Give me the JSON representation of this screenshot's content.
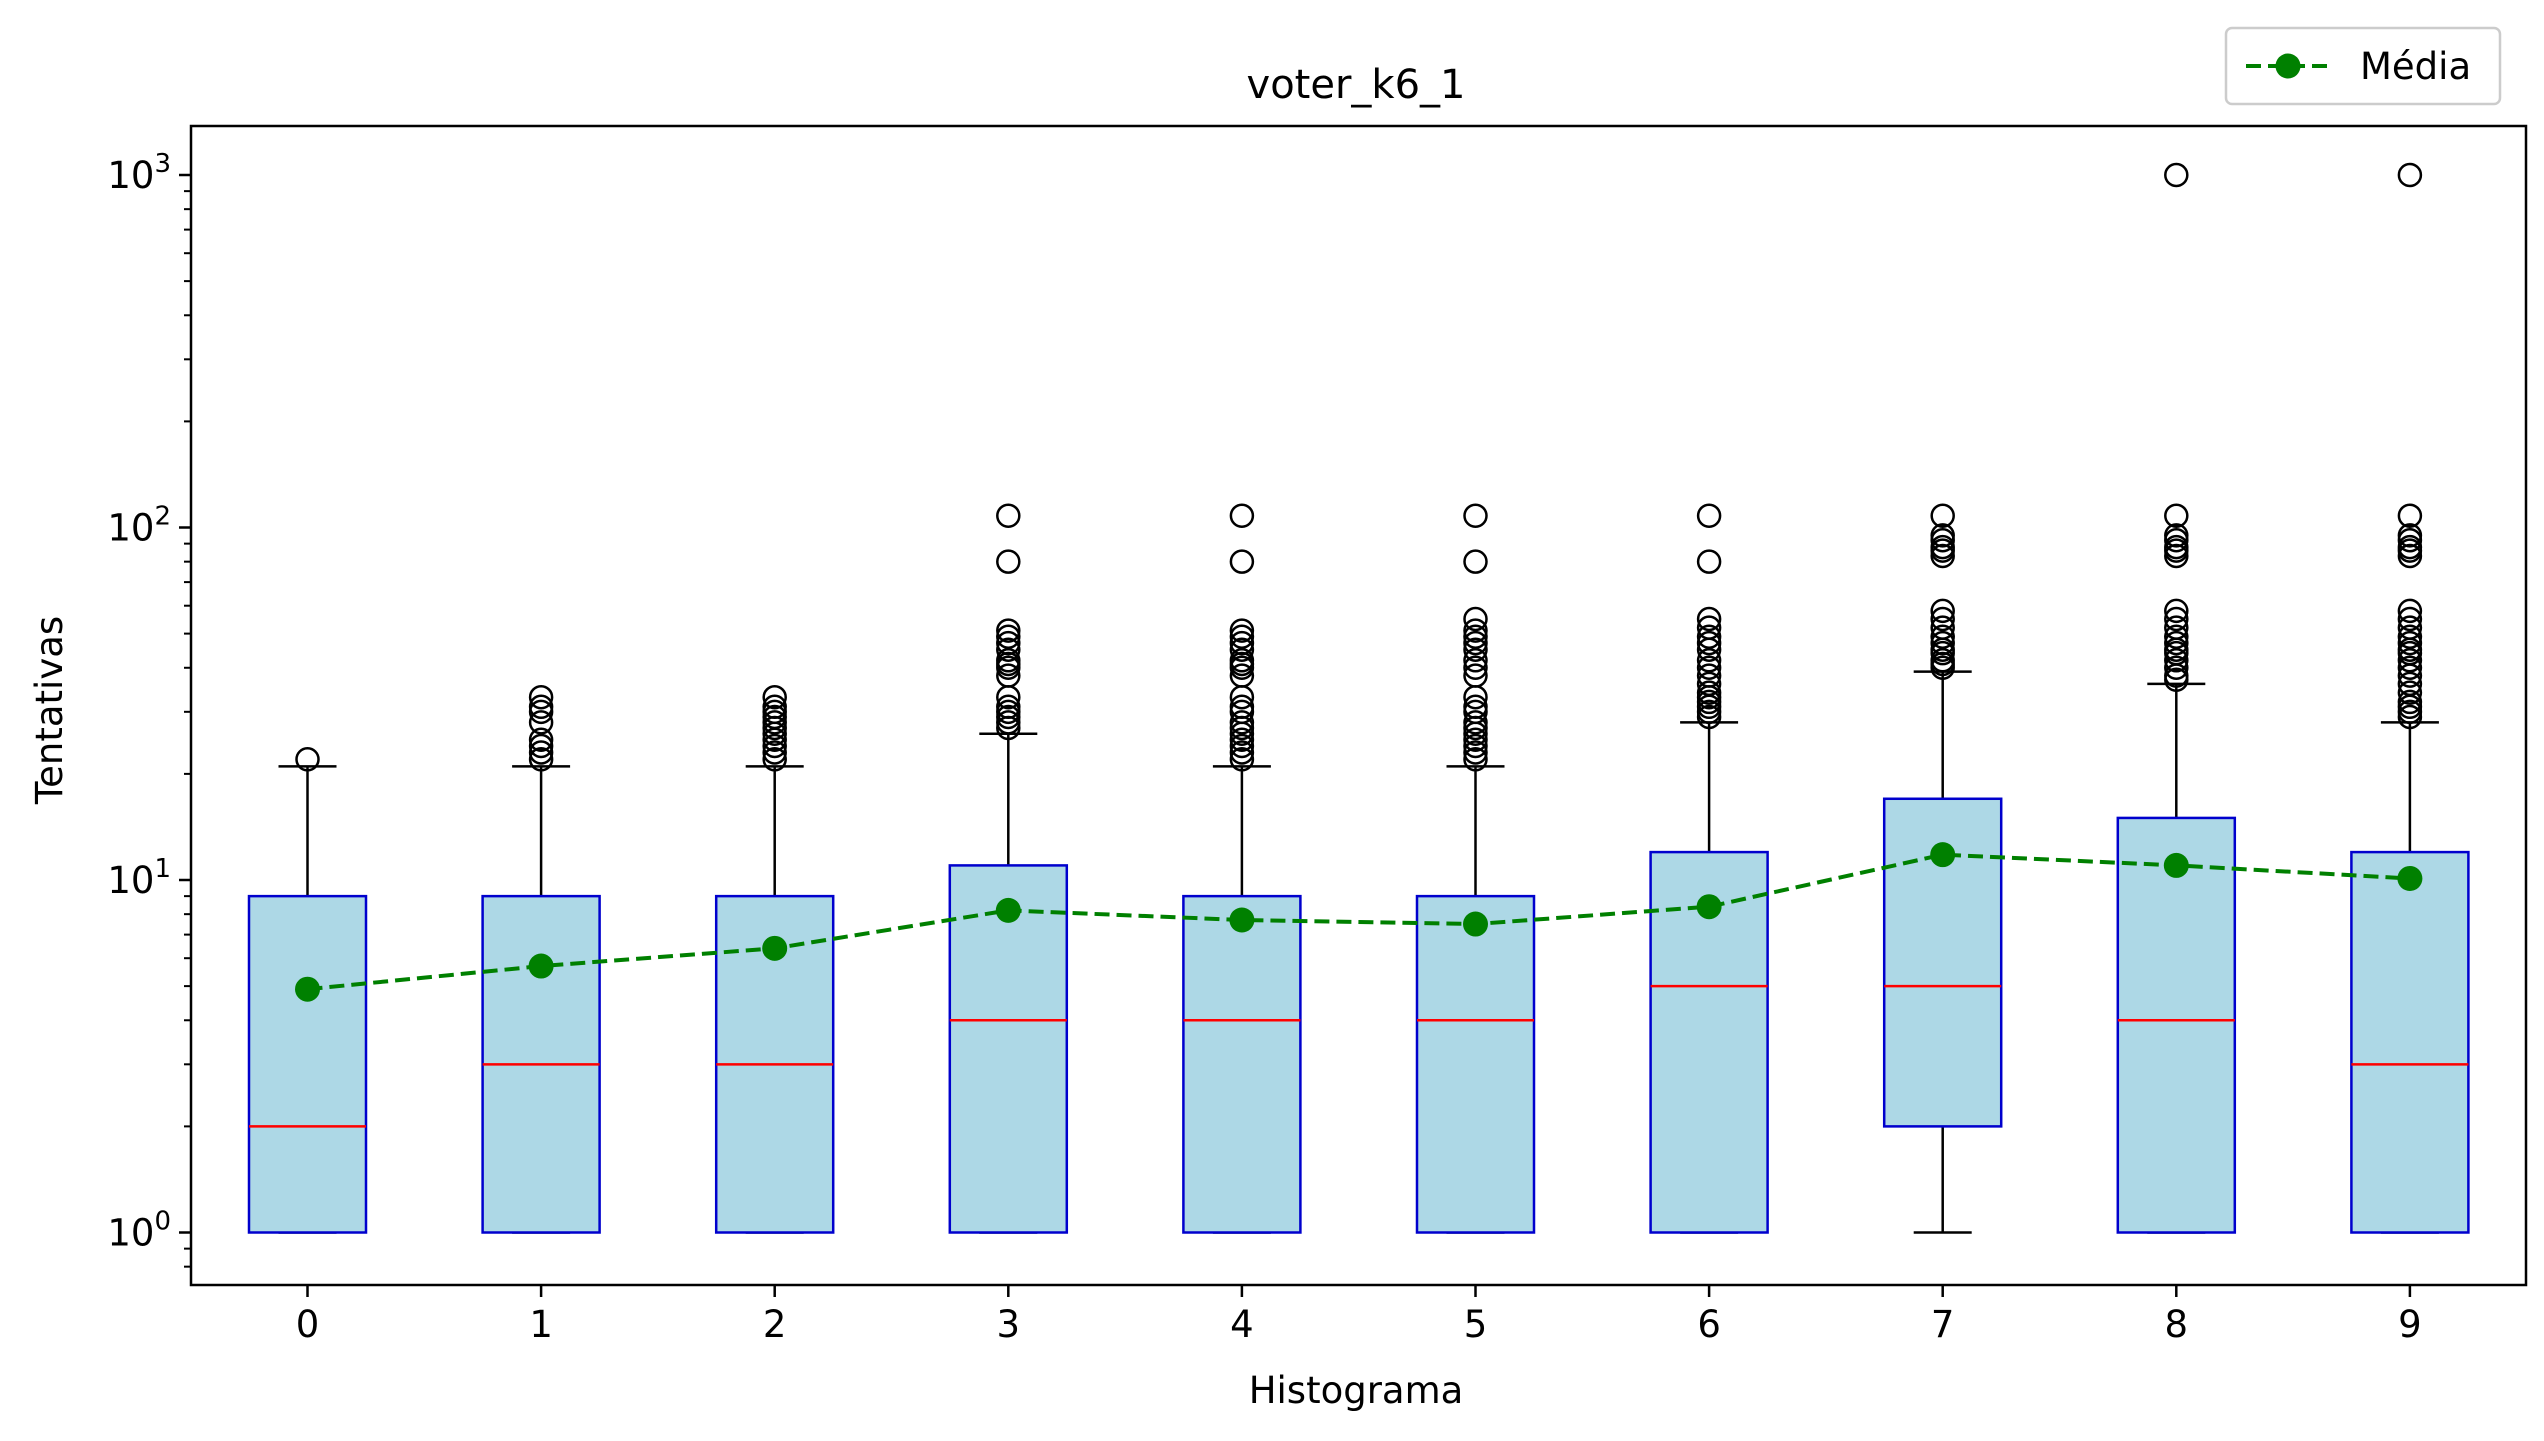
{
  "chart_data": {
    "type": "box",
    "title": "voter_k6_1",
    "xlabel": "Histograma",
    "ylabel": "Tentativas",
    "yscale": "log",
    "ylim": [
      0.75,
      1500
    ],
    "grid": false,
    "legend_position": "top-right",
    "categories": [
      "0",
      "1",
      "2",
      "3",
      "4",
      "5",
      "6",
      "7",
      "8",
      "9"
    ],
    "yticks": [
      {
        "value": 1,
        "base": "10",
        "exp": "0"
      },
      {
        "value": 10,
        "base": "10",
        "exp": "1"
      },
      {
        "value": 100,
        "base": "10",
        "exp": "2"
      },
      {
        "value": 1000,
        "base": "10",
        "exp": "3"
      }
    ],
    "boxes": [
      {
        "category": "0",
        "min": 1,
        "q1": 1,
        "median": 2,
        "q3": 9,
        "whisker_high": 21,
        "outliers": [
          22
        ]
      },
      {
        "category": "1",
        "min": 1,
        "q1": 1,
        "median": 3,
        "q3": 9,
        "whisker_high": 21,
        "outliers": [
          22,
          23,
          24,
          25,
          28,
          30,
          31,
          33
        ]
      },
      {
        "category": "2",
        "min": 1,
        "q1": 1,
        "median": 3,
        "q3": 9,
        "whisker_high": 21,
        "outliers": [
          22,
          23,
          24,
          25,
          26,
          27,
          28,
          29,
          30,
          31,
          33
        ]
      },
      {
        "category": "3",
        "min": 1,
        "q1": 1,
        "median": 4,
        "q3": 11,
        "whisker_high": 26,
        "outliers": [
          27,
          28,
          29,
          30,
          31,
          33,
          38,
          40,
          41,
          42,
          45,
          47,
          49,
          51,
          80,
          108
        ]
      },
      {
        "category": "4",
        "min": 1,
        "q1": 1,
        "median": 4,
        "q3": 9,
        "whisker_high": 21,
        "outliers": [
          22,
          23,
          24,
          25,
          26,
          27,
          28,
          30,
          31,
          33,
          38,
          40,
          41,
          42,
          45,
          47,
          49,
          51,
          80,
          108
        ]
      },
      {
        "category": "5",
        "min": 1,
        "q1": 1,
        "median": 4,
        "q3": 9,
        "whisker_high": 21,
        "outliers": [
          22,
          23,
          24,
          25,
          26,
          27,
          28,
          30,
          31,
          33,
          38,
          40,
          42,
          45,
          47,
          49,
          51,
          55,
          80,
          108
        ]
      },
      {
        "category": "6",
        "min": 1,
        "q1": 1,
        "median": 5,
        "q3": 12,
        "whisker_high": 28,
        "outliers": [
          29,
          30,
          31,
          32,
          33,
          34,
          36,
          38,
          40,
          42,
          45,
          47,
          49,
          52,
          55,
          80,
          108
        ]
      },
      {
        "category": "7",
        "min": 1,
        "q1": 2,
        "median": 5,
        "q3": 17,
        "whisker_high": 39,
        "outliers": [
          40,
          41,
          42,
          44,
          45,
          47,
          49,
          52,
          55,
          58,
          83,
          86,
          88,
          92,
          95,
          108
        ]
      },
      {
        "category": "8",
        "min": 1,
        "q1": 1,
        "median": 4,
        "q3": 15,
        "whisker_high": 36,
        "outliers": [
          37,
          38,
          40,
          42,
          44,
          45,
          47,
          49,
          52,
          55,
          58,
          83,
          86,
          88,
          92,
          95,
          108,
          1000
        ]
      },
      {
        "category": "9",
        "min": 1,
        "q1": 1,
        "median": 3,
        "q3": 12,
        "whisker_high": 28,
        "outliers": [
          29,
          30,
          31,
          32,
          34,
          36,
          38,
          40,
          42,
          44,
          45,
          47,
          49,
          52,
          55,
          58,
          83,
          86,
          88,
          92,
          95,
          108,
          1000
        ]
      }
    ],
    "series": [
      {
        "name": "Média",
        "type": "line",
        "style": "dashed",
        "marker": "circle",
        "values": [
          4.9,
          5.7,
          6.4,
          8.2,
          7.7,
          7.5,
          8.4,
          11.8,
          11.0,
          10.1
        ]
      }
    ],
    "colors": {
      "box_fill": "#add8e6",
      "box_edge": "#0000cd",
      "median": "#ff0000",
      "mean": "#008000",
      "axis": "#000000"
    }
  }
}
